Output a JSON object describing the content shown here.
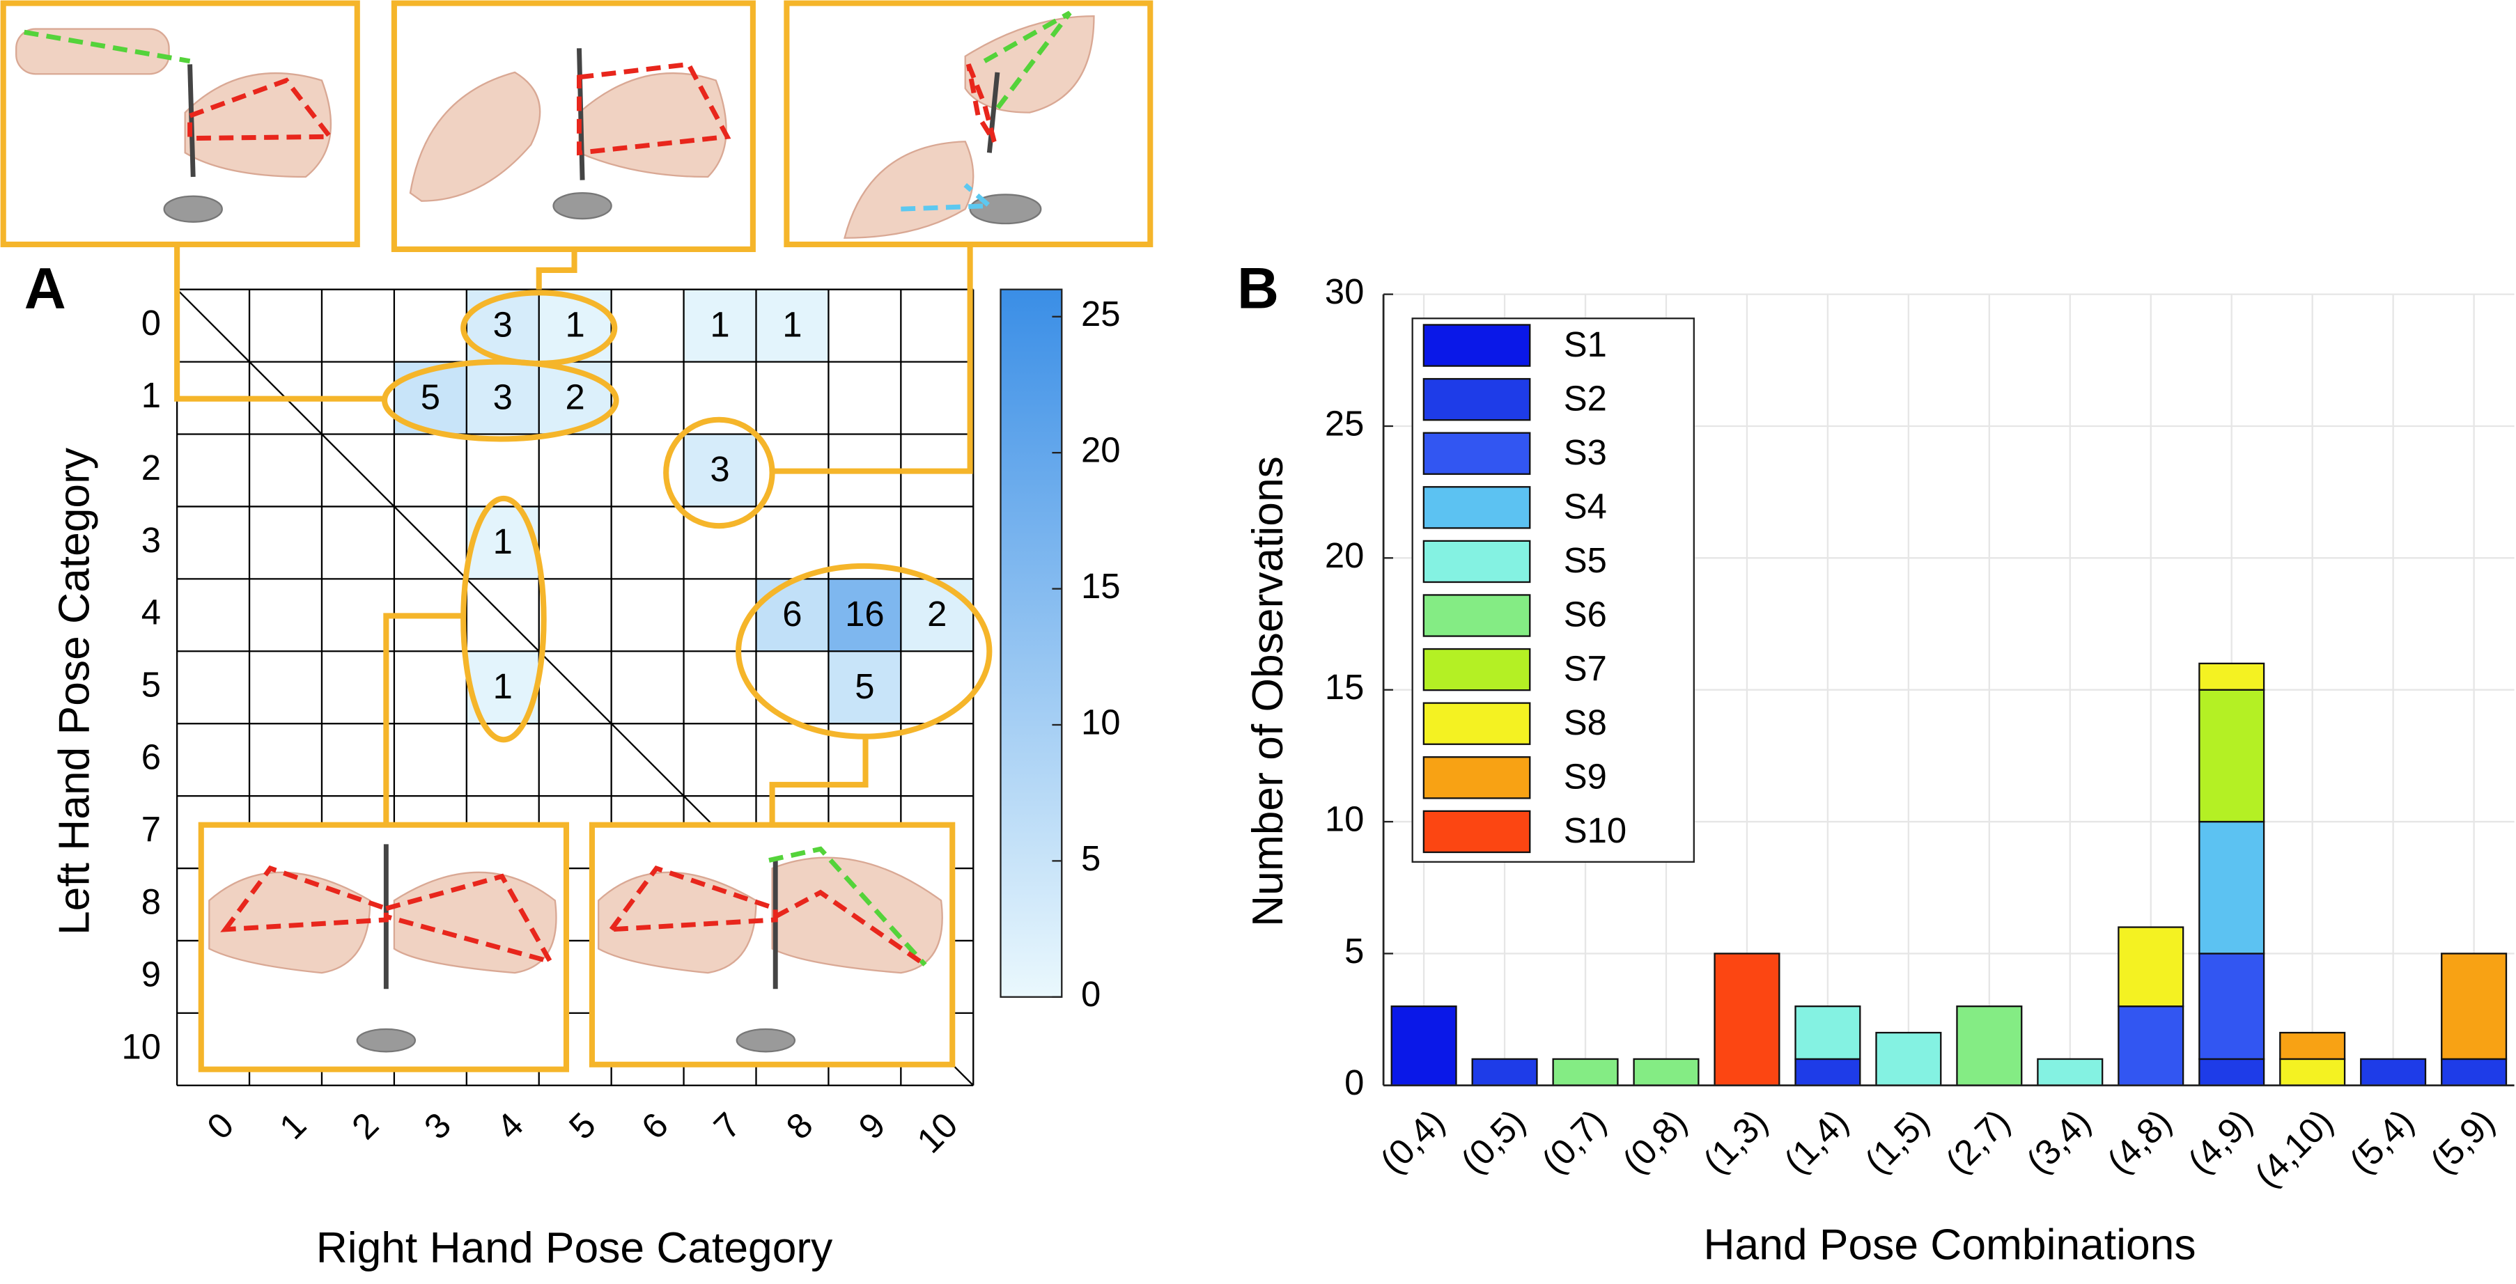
{
  "chart_data": [
    {
      "type": "heatmap",
      "panel_label": "A",
      "xlabel": "Right Hand Pose Category",
      "ylabel": "Left Hand Pose Category",
      "xcategories": [
        "0",
        "1",
        "2",
        "3",
        "4",
        "5",
        "6",
        "7",
        "8",
        "9",
        "10"
      ],
      "ycategories": [
        "0",
        "1",
        "2",
        "3",
        "4",
        "5",
        "6",
        "7",
        "8",
        "9",
        "10"
      ],
      "z": [
        [
          null,
          null,
          null,
          null,
          3,
          1,
          null,
          1,
          1,
          null,
          null
        ],
        [
          null,
          null,
          null,
          5,
          3,
          2,
          null,
          null,
          null,
          null,
          null
        ],
        [
          null,
          null,
          null,
          null,
          null,
          null,
          null,
          3,
          null,
          null,
          null
        ],
        [
          null,
          null,
          null,
          null,
          1,
          null,
          null,
          null,
          null,
          null,
          null
        ],
        [
          null,
          null,
          null,
          null,
          null,
          null,
          null,
          null,
          6,
          16,
          2
        ],
        [
          null,
          null,
          null,
          null,
          1,
          null,
          null,
          null,
          null,
          5,
          null
        ],
        [
          null,
          null,
          null,
          null,
          null,
          null,
          null,
          null,
          null,
          null,
          null
        ],
        [
          null,
          null,
          null,
          null,
          null,
          null,
          null,
          null,
          null,
          null,
          null
        ],
        [
          null,
          null,
          null,
          null,
          null,
          null,
          null,
          null,
          null,
          null,
          null
        ],
        [
          null,
          null,
          null,
          null,
          null,
          null,
          null,
          null,
          null,
          null,
          null
        ],
        [
          null,
          null,
          null,
          null,
          null,
          null,
          null,
          null,
          null,
          null,
          null
        ]
      ],
      "zlim": [
        0,
        26
      ],
      "zticks": [
        0,
        5,
        10,
        15,
        20,
        25
      ],
      "colormap": [
        "#eaf8fd",
        "#3a8ee6"
      ]
    },
    {
      "type": "stacked_bar",
      "panel_label": "B",
      "xlabel": "Hand Pose Combinations",
      "ylabel": "Number of Observations",
      "categories": [
        "(0,4)",
        "(0,5)",
        "(0,7)",
        "(0,8)",
        "(1,3)",
        "(1,4)",
        "(1,5)",
        "(2,7)",
        "(3,4)",
        "(4,8)",
        "(4,9)",
        "(4,10)",
        "(5,4)",
        "(5,9)"
      ],
      "series": [
        {
          "name": "S1",
          "color": "#0a18e8",
          "values": [
            3,
            null,
            null,
            null,
            null,
            null,
            null,
            null,
            null,
            null,
            null,
            null,
            null,
            null
          ]
        },
        {
          "name": "S2",
          "color": "#1e3ce8",
          "values": [
            null,
            1,
            null,
            null,
            null,
            1,
            null,
            null,
            null,
            null,
            1,
            null,
            1,
            1
          ]
        },
        {
          "name": "S3",
          "color": "#3256f2",
          "values": [
            null,
            null,
            null,
            null,
            null,
            null,
            null,
            null,
            null,
            3,
            4,
            null,
            null,
            null
          ]
        },
        {
          "name": "S4",
          "color": "#5cc2f2",
          "values": [
            null,
            null,
            null,
            null,
            null,
            null,
            null,
            null,
            null,
            null,
            5,
            null,
            null,
            null
          ]
        },
        {
          "name": "S5",
          "color": "#84f2e2",
          "values": [
            null,
            null,
            null,
            null,
            null,
            2,
            2,
            null,
            1,
            null,
            null,
            null,
            null,
            null
          ]
        },
        {
          "name": "S6",
          "color": "#84ec84",
          "values": [
            null,
            null,
            1,
            1,
            null,
            null,
            null,
            3,
            null,
            null,
            null,
            null,
            null,
            null
          ]
        },
        {
          "name": "S7",
          "color": "#b4f024",
          "values": [
            null,
            null,
            null,
            null,
            null,
            null,
            null,
            null,
            null,
            null,
            5,
            null,
            null,
            null
          ]
        },
        {
          "name": "S8",
          "color": "#f4f222",
          "values": [
            null,
            null,
            null,
            null,
            null,
            null,
            null,
            null,
            null,
            3,
            1,
            1,
            null,
            null
          ]
        },
        {
          "name": "S9",
          "color": "#f8a214",
          "values": [
            null,
            null,
            null,
            null,
            null,
            null,
            null,
            null,
            null,
            null,
            null,
            1,
            null,
            4
          ]
        },
        {
          "name": "S10",
          "color": "#fc4612",
          "values": [
            null,
            null,
            null,
            null,
            5,
            null,
            null,
            null,
            null,
            null,
            null,
            null,
            null,
            null
          ]
        }
      ],
      "ylim": [
        0,
        30
      ],
      "yticks": [
        0,
        5,
        10,
        15,
        20,
        25,
        30
      ],
      "grid": true,
      "legend": "upper left"
    }
  ]
}
